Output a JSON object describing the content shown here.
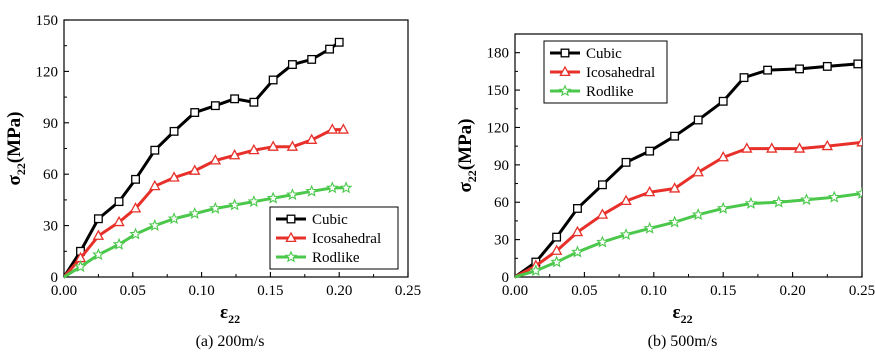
{
  "chart_data": [
    {
      "type": "line",
      "caption": "(a) 200m/s",
      "xlabel": "ε",
      "xlabel_sub": "22",
      "ylabel": "σ",
      "ylabel_sub": "22",
      "ylabel_unit": "(MPa)",
      "xlim": [
        0,
        0.25
      ],
      "ylim": [
        0,
        150
      ],
      "xticks": [
        "0.00",
        "0.05",
        "0.10",
        "0.15",
        "0.20",
        "0.25"
      ],
      "yticks": [
        "0",
        "30",
        "60",
        "90",
        "120",
        "150"
      ],
      "legend_position": "bottom-right",
      "series": [
        {
          "name": "Cubic",
          "color": "#000000",
          "marker": "square",
          "x": [
            0,
            0.012,
            0.025,
            0.04,
            0.052,
            0.066,
            0.08,
            0.095,
            0.11,
            0.124,
            0.138,
            0.152,
            0.166,
            0.18,
            0.193,
            0.2
          ],
          "y": [
            0,
            15,
            34,
            44,
            57,
            74,
            85,
            96,
            100,
            104,
            102,
            115,
            124,
            127,
            133,
            137
          ]
        },
        {
          "name": "Icosahedral",
          "color": "#e8302a",
          "marker": "triangle",
          "x": [
            0,
            0.012,
            0.025,
            0.04,
            0.052,
            0.066,
            0.08,
            0.095,
            0.11,
            0.124,
            0.138,
            0.152,
            0.166,
            0.18,
            0.195,
            0.203
          ],
          "y": [
            0,
            11,
            24,
            32,
            40,
            53,
            58,
            62,
            68,
            71,
            74,
            76,
            76,
            80,
            86,
            86
          ]
        },
        {
          "name": "Rodlike",
          "color": "#4bc84b",
          "marker": "star",
          "x": [
            0,
            0.012,
            0.025,
            0.04,
            0.052,
            0.066,
            0.08,
            0.095,
            0.11,
            0.124,
            0.138,
            0.152,
            0.166,
            0.18,
            0.195,
            0.205
          ],
          "y": [
            0,
            6,
            13,
            19,
            25,
            30,
            34,
            37,
            40,
            42,
            44,
            46,
            48,
            50,
            52,
            52
          ]
        }
      ]
    },
    {
      "type": "line",
      "caption": "(b) 500m/s",
      "xlabel": "ε",
      "xlabel_sub": "22",
      "ylabel": "σ",
      "ylabel_sub": "22",
      "ylabel_unit": "(MPa)",
      "xlim": [
        0,
        0.25
      ],
      "ylim": [
        0,
        195
      ],
      "xticks": [
        "0.00",
        "0.05",
        "0.10",
        "0.15",
        "0.20",
        "0.25"
      ],
      "yticks": [
        "0",
        "30",
        "60",
        "90",
        "120",
        "150",
        "180"
      ],
      "legend_position": "top-left",
      "series": [
        {
          "name": "Cubic",
          "color": "#000000",
          "marker": "square",
          "x": [
            0,
            0.015,
            0.03,
            0.045,
            0.063,
            0.08,
            0.097,
            0.115,
            0.132,
            0.15,
            0.165,
            0.182,
            0.205,
            0.225,
            0.247
          ],
          "y": [
            0,
            12,
            32,
            55,
            74,
            92,
            101,
            113,
            126,
            141,
            160,
            166,
            167,
            169,
            171
          ]
        },
        {
          "name": "Icosahedral",
          "color": "#e8302a",
          "marker": "triangle",
          "x": [
            0,
            0.015,
            0.03,
            0.045,
            0.063,
            0.08,
            0.097,
            0.115,
            0.132,
            0.15,
            0.167,
            0.185,
            0.205,
            0.225,
            0.25
          ],
          "y": [
            0,
            9,
            21,
            36,
            50,
            61,
            68,
            71,
            84,
            96,
            103,
            103,
            103,
            105,
            108
          ]
        },
        {
          "name": "Rodlike",
          "color": "#4bc84b",
          "marker": "star",
          "x": [
            0,
            0.015,
            0.03,
            0.045,
            0.063,
            0.08,
            0.097,
            0.115,
            0.132,
            0.15,
            0.17,
            0.19,
            0.21,
            0.23,
            0.25
          ],
          "y": [
            0,
            5,
            12,
            20,
            28,
            34,
            39,
            44,
            50,
            55,
            59,
            60,
            62,
            64,
            67
          ]
        }
      ]
    }
  ]
}
